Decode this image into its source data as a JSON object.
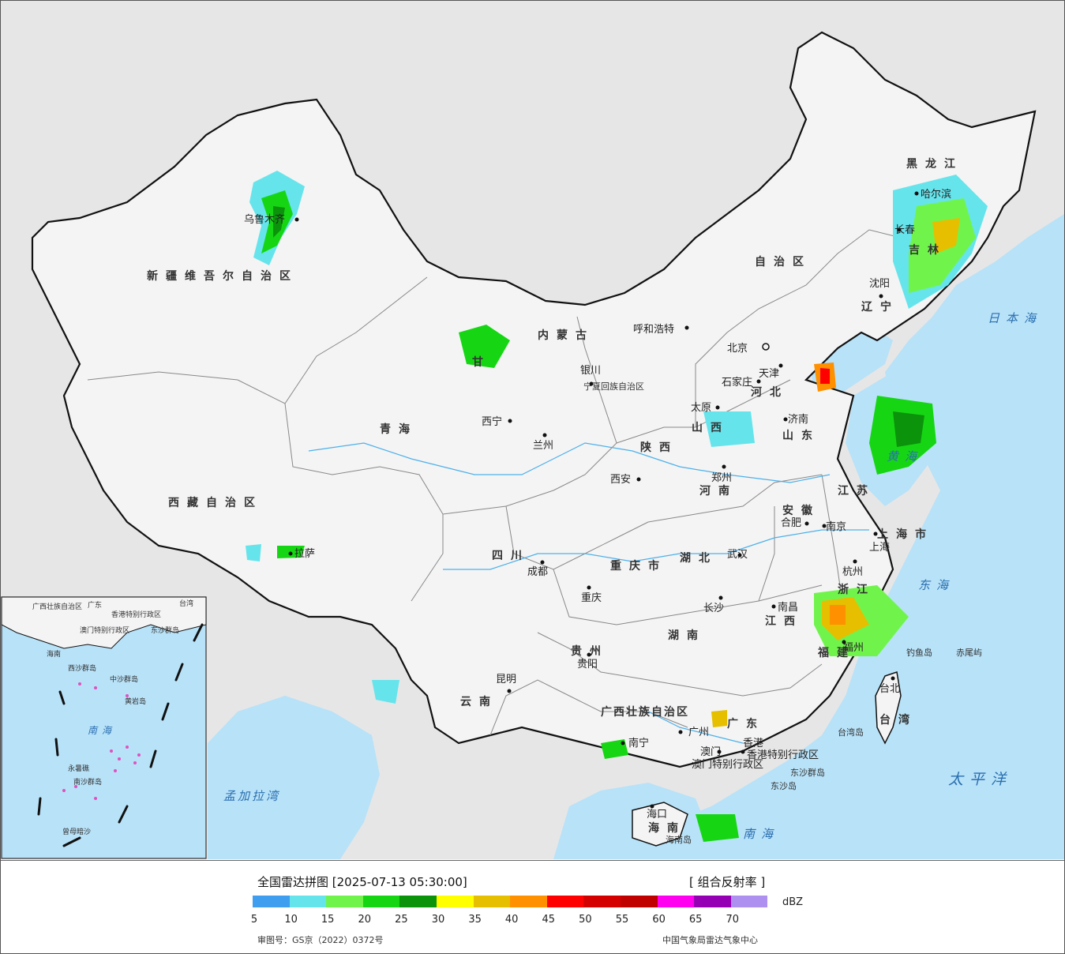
{
  "legend": {
    "title": "全国雷达拼图 [2025-07-13 05:30:00]",
    "product": "[ 组合反射率 ]",
    "unit": "dBZ",
    "approval": "审图号：GS京（2022）0372号",
    "agency": "中国气象局雷达气象中心",
    "ticks": [
      "5",
      "10",
      "15",
      "20",
      "25",
      "30",
      "35",
      "40",
      "45",
      "50",
      "55",
      "60",
      "65",
      "70"
    ],
    "colors": [
      "#3f9ef0",
      "#66e4ec",
      "#70f44c",
      "#16d614",
      "#0b930b",
      "#ffff00",
      "#e6bf00",
      "#ff9000",
      "#ff0000",
      "#d40000",
      "#c00000",
      "#ff00f0",
      "#9600b4",
      "#ad90f0"
    ]
  },
  "map_labels": {
    "provinces": [
      {
        "name": "新疆维吾尔自治区"
      },
      {
        "name": "西藏自治区"
      },
      {
        "name": "青海"
      },
      {
        "name": "甘"
      },
      {
        "name": "内蒙古"
      },
      {
        "name": "自治区"
      },
      {
        "name": "黑龙江"
      },
      {
        "name": "吉林"
      },
      {
        "name": "辽宁"
      },
      {
        "name": "河北"
      },
      {
        "name": "山西"
      },
      {
        "name": "山东"
      },
      {
        "name": "陕西"
      },
      {
        "name": "河南"
      },
      {
        "name": "四川"
      },
      {
        "name": "重庆市"
      },
      {
        "name": "湖北"
      },
      {
        "name": "安徽"
      },
      {
        "name": "江苏"
      },
      {
        "name": "上海市"
      },
      {
        "name": "浙江"
      },
      {
        "name": "江西"
      },
      {
        "name": "湖南"
      },
      {
        "name": "贵州"
      },
      {
        "name": "云南"
      },
      {
        "name": "广西壮族自治区"
      },
      {
        "name": "广东"
      },
      {
        "name": "福建"
      },
      {
        "name": "台湾"
      },
      {
        "name": "海南"
      },
      {
        "name": "宁夏回族自治区"
      },
      {
        "name": "香港特别行政区"
      },
      {
        "name": "澳门特别行政区"
      }
    ],
    "cities": [
      "乌鲁木齐",
      "拉萨",
      "西宁",
      "兰州",
      "银川",
      "呼和浩特",
      "北京",
      "天津",
      "石家庄",
      "太原",
      "济南",
      "郑州",
      "西安",
      "成都",
      "重庆",
      "武汉",
      "合肥",
      "南京",
      "上海",
      "杭州",
      "南昌",
      "长沙",
      "福州",
      "台北",
      "贵阳",
      "昆明",
      "南宁",
      "广州",
      "香港",
      "澳门",
      "海口",
      "哈尔滨",
      "长春",
      "沈阳"
    ],
    "seas": [
      "日本海",
      "黄海",
      "东海",
      "太平洋",
      "南海",
      "孟加拉湾"
    ],
    "islands": [
      "钓鱼岛",
      "赤尾屿",
      "台湾岛",
      "东沙群岛",
      "东沙岛",
      "海南岛"
    ],
    "inset": [
      "南海",
      "海南",
      "中沙群岛",
      "西沙群岛",
      "南沙群岛",
      "黄岩岛",
      "永暑礁",
      "曾母暗沙",
      "广西壮族自治区",
      "广东",
      "香港特别行政区",
      "澳门特别行政区",
      "台湾",
      "东沙群岛"
    ]
  }
}
